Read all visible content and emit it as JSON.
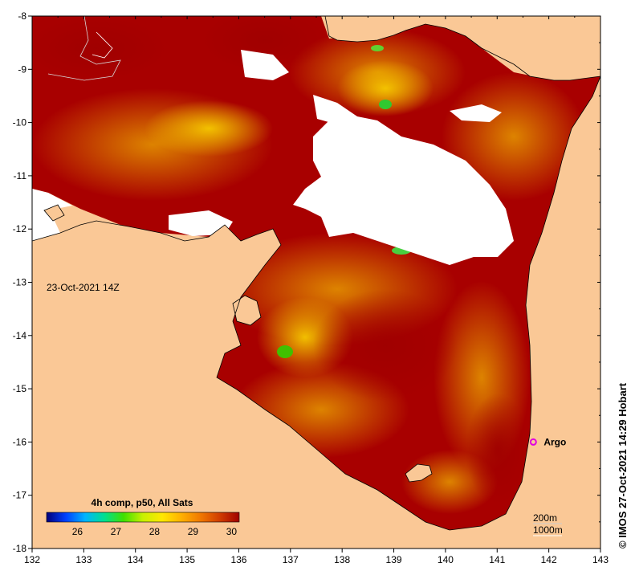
{
  "map": {
    "x_axis": {
      "min": 132,
      "max": 143,
      "ticks": [
        "132",
        "133",
        "134",
        "135",
        "136",
        "137",
        "138",
        "139",
        "140",
        "141",
        "142",
        "143"
      ]
    },
    "y_axis": {
      "min": -18,
      "max": -8,
      "ticks": [
        "-8",
        "-9",
        "-10",
        "-11",
        "-12",
        "-13",
        "-14",
        "-15",
        "-16",
        "-17",
        "-18"
      ]
    },
    "timestamp": "23-Oct-2021 14Z",
    "credit": "© IMOS 27-Oct-2021 14:29 Hobart",
    "marker": {
      "label": "Argo",
      "lon": 141.7,
      "lat": -16.0,
      "color": "#e000e0"
    },
    "contours": {
      "label_200": "200m",
      "label_1000": "1000m"
    },
    "colorbar": {
      "title": "4h comp, p50, All Sats",
      "min": 25.2,
      "max": 30.2,
      "ticks": [
        "26",
        "27",
        "28",
        "29",
        "30"
      ],
      "tick_values": [
        26,
        27,
        28,
        29,
        30
      ],
      "colors": [
        "#00007a",
        "#0040ff",
        "#00b4ff",
        "#00e090",
        "#40e000",
        "#c8f000",
        "#ffe800",
        "#ffb000",
        "#f07800",
        "#d03c00",
        "#a00000"
      ]
    },
    "palette": {
      "land": "#fac896",
      "sst_hot": "#a80000",
      "sst_warm": "#d85800",
      "sst_mid": "#e88a00",
      "sst_cool": "#f2b400",
      "cloud": "#ffffff"
    }
  }
}
